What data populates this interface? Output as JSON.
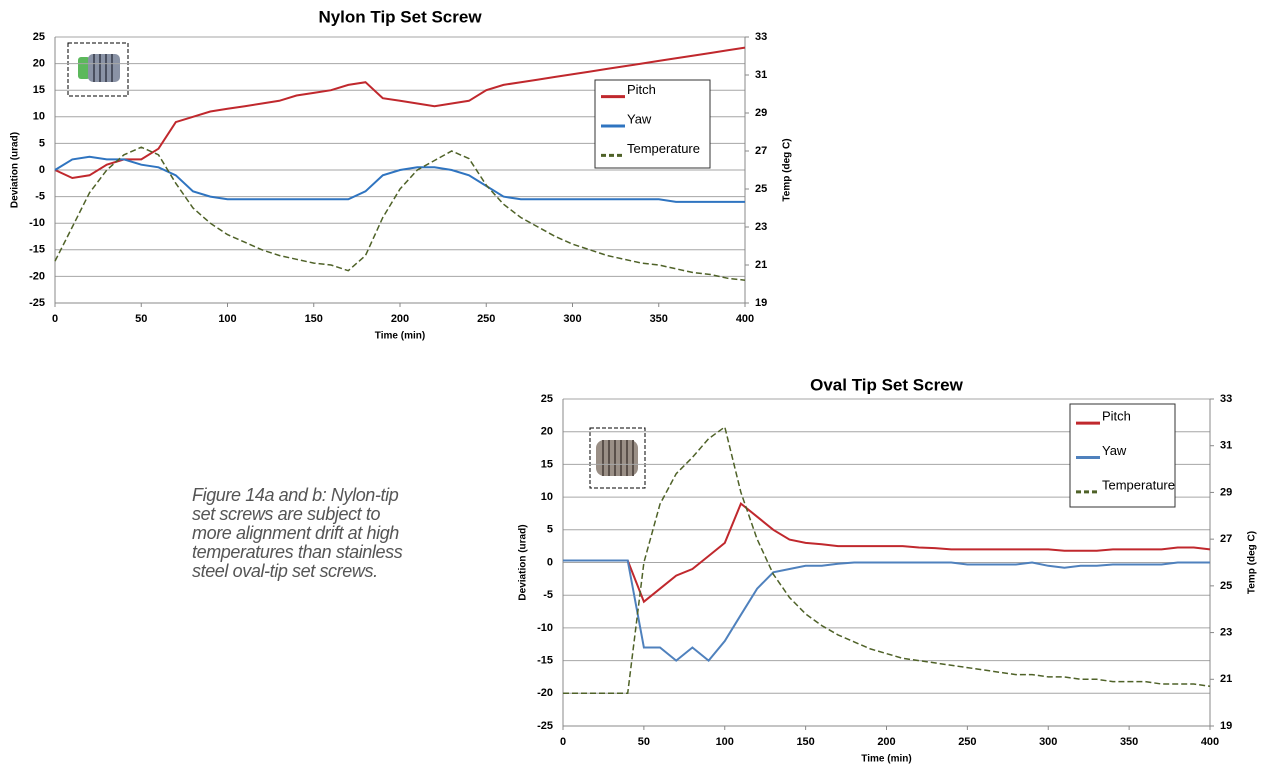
{
  "caption": "Figure 14a and b: Nylon-tip set screws are subject to more alignment drift at high temperatures than stainless steel oval-tip set screws.",
  "chart_data": [
    {
      "type": "line",
      "title": "Nylon Tip Set Screw",
      "xlabel": "Time (min)",
      "ylabel": "Deviation (urad)",
      "y2label": "Temp (deg C)",
      "x": [
        0,
        10,
        20,
        30,
        40,
        50,
        60,
        70,
        80,
        90,
        100,
        110,
        120,
        130,
        140,
        150,
        160,
        170,
        180,
        190,
        200,
        210,
        220,
        230,
        240,
        250,
        260,
        270,
        280,
        290,
        300,
        310,
        320,
        330,
        340,
        350,
        360,
        370,
        380,
        390,
        400
      ],
      "series": [
        {
          "name": "Pitch",
          "color": "#c0282d",
          "values": [
            0,
            -1.5,
            -1,
            1,
            2,
            2,
            4,
            9,
            10,
            11,
            11.5,
            12,
            12.5,
            13,
            14,
            14.5,
            15,
            16,
            16.5,
            13.5,
            13,
            12.5,
            12,
            12.5,
            13,
            15,
            16,
            16.5,
            17,
            17.5,
            18,
            18.5,
            19,
            19.5,
            20,
            20.5,
            21,
            21.5,
            22,
            22.5,
            23
          ]
        },
        {
          "name": "Yaw",
          "color": "#2f74c0",
          "values": [
            0,
            2,
            2.5,
            2,
            2,
            1,
            0.5,
            -1,
            -4,
            -5,
            -5.5,
            -5.5,
            -5.5,
            -5.5,
            -5.5,
            -5.5,
            -5.5,
            -5.5,
            -4,
            -1,
            0,
            0.5,
            0.5,
            0,
            -1,
            -3,
            -5,
            -5.5,
            -5.5,
            -5.5,
            -5.5,
            -5.5,
            -5.5,
            -5.5,
            -5.5,
            -5.5,
            -6,
            -6,
            -6,
            -6,
            -6
          ]
        },
        {
          "name": "Temperature",
          "color": "#4f6228",
          "axis": "y2",
          "linestyle": "dashed",
          "values": [
            21.2,
            23,
            24.8,
            26,
            26.8,
            27.2,
            26.8,
            25.3,
            24,
            23.2,
            22.6,
            22.2,
            21.8,
            21.5,
            21.3,
            21.1,
            21,
            20.7,
            21.5,
            23.5,
            25,
            26,
            26.5,
            27,
            26.6,
            25.2,
            24.2,
            23.5,
            23,
            22.5,
            22.1,
            21.8,
            21.5,
            21.3,
            21.1,
            21,
            20.8,
            20.6,
            20.5,
            20.3,
            20.2
          ]
        }
      ],
      "xlim": [
        0,
        400
      ],
      "xticks": [
        0,
        50,
        100,
        150,
        200,
        250,
        300,
        350,
        400
      ],
      "ylim": [
        -25,
        25
      ],
      "yticks": [
        -25,
        -20,
        -15,
        -10,
        -5,
        0,
        5,
        10,
        15,
        20,
        25
      ],
      "y2lim": [
        19,
        33
      ],
      "y2ticks": [
        19,
        21,
        23,
        25,
        27,
        29,
        31,
        33
      ],
      "grid": true,
      "legend": "upper right"
    },
    {
      "type": "line",
      "title": "Oval Tip Set Screw",
      "xlabel": "Time (min)",
      "ylabel": "Deviation (urad)",
      "y2label": "Temp (deg C)",
      "x": [
        0,
        10,
        20,
        30,
        40,
        50,
        60,
        70,
        80,
        90,
        100,
        110,
        120,
        130,
        140,
        150,
        160,
        170,
        180,
        190,
        200,
        210,
        220,
        230,
        240,
        250,
        260,
        270,
        280,
        290,
        300,
        310,
        320,
        330,
        340,
        350,
        360,
        370,
        380,
        390,
        400
      ],
      "series": [
        {
          "name": "Pitch",
          "color": "#c0282d",
          "values": [
            0.3,
            0.3,
            0.3,
            0.3,
            0.3,
            -6,
            -4,
            -2,
            -1,
            1,
            3,
            9,
            7,
            5,
            3.5,
            3,
            2.8,
            2.5,
            2.5,
            2.5,
            2.5,
            2.5,
            2.3,
            2.2,
            2,
            2,
            2,
            2,
            2,
            2,
            2,
            1.8,
            1.8,
            1.8,
            2,
            2,
            2,
            2,
            2.3,
            2.3,
            2
          ]
        },
        {
          "name": "Yaw",
          "color": "#4f81bd",
          "values": [
            0.3,
            0.3,
            0.3,
            0.3,
            0.3,
            -13,
            -13,
            -15,
            -13,
            -15,
            -12,
            -8,
            -4,
            -1.5,
            -1,
            -0.5,
            -0.5,
            -0.2,
            0,
            0,
            0,
            0,
            0,
            0,
            0,
            -0.3,
            -0.3,
            -0.3,
            -0.3,
            0,
            -0.5,
            -0.8,
            -0.5,
            -0.5,
            -0.3,
            -0.3,
            -0.3,
            -0.3,
            0,
            0,
            0
          ]
        },
        {
          "name": "Temperature",
          "color": "#4f6228",
          "axis": "y2",
          "linestyle": "dashed",
          "values": [
            20.4,
            20.4,
            20.4,
            20.4,
            20.4,
            26,
            28.5,
            29.8,
            30.5,
            31.3,
            31.8,
            29,
            27,
            25.5,
            24.5,
            23.8,
            23.3,
            22.9,
            22.6,
            22.3,
            22.1,
            21.9,
            21.8,
            21.7,
            21.6,
            21.5,
            21.4,
            21.3,
            21.2,
            21.2,
            21.1,
            21.1,
            21,
            21,
            20.9,
            20.9,
            20.9,
            20.8,
            20.8,
            20.8,
            20.7
          ]
        }
      ],
      "xlim": [
        0,
        400
      ],
      "xticks": [
        0,
        50,
        100,
        150,
        200,
        250,
        300,
        350,
        400
      ],
      "ylim": [
        -25,
        25
      ],
      "yticks": [
        -25,
        -20,
        -15,
        -10,
        -5,
        0,
        5,
        10,
        15,
        20,
        25
      ],
      "y2lim": [
        19,
        33
      ],
      "y2ticks": [
        19,
        21,
        23,
        25,
        27,
        29,
        31,
        33
      ],
      "grid": true,
      "legend": "upper right"
    }
  ]
}
